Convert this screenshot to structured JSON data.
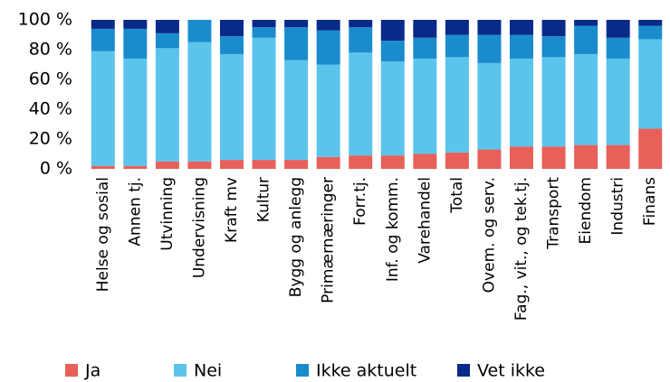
{
  "chart_data": {
    "type": "stacked_bar",
    "categories": [
      "Helse og sosial",
      "Annen tj.",
      "Utvinning",
      "Undervisning",
      "Kraft mv",
      "Kultur",
      "Bygg og anlegg",
      "Primærnæringer",
      "Forr.tj.",
      "Inf. og komm.",
      "Varehandel",
      "Total",
      "Ovem. og serv.",
      "Fag., vit., og tek.tj.",
      "Transport",
      "Eiendom",
      "Industri",
      "Finans"
    ],
    "series": [
      {
        "name": "Ja",
        "color": "#e8605a",
        "values": [
          2,
          2,
          5,
          5,
          6,
          6,
          6,
          8,
          9,
          9,
          10,
          11,
          13,
          15,
          15,
          16,
          16,
          27
        ]
      },
      {
        "name": "Nei",
        "color": "#5bc4ec",
        "values": [
          77,
          72,
          76,
          80,
          71,
          82,
          67,
          62,
          69,
          63,
          64,
          64,
          58,
          59,
          60,
          61,
          58,
          60
        ]
      },
      {
        "name": "Ikke aktuelt",
        "color": "#1a8ccc",
        "values": [
          15,
          20,
          10,
          15,
          12,
          7,
          22,
          23,
          17,
          14,
          14,
          15,
          19,
          16,
          14,
          19,
          14,
          9
        ]
      },
      {
        "name": "Vet ikke",
        "color": "#0a2a8a",
        "values": [
          6,
          6,
          9,
          0,
          11,
          5,
          5,
          7,
          5,
          14,
          12,
          10,
          10,
          10,
          11,
          4,
          12,
          4
        ]
      }
    ],
    "ylim": [
      0,
      100
    ],
    "yticks": [
      {
        "value": 0,
        "label": "0 %"
      },
      {
        "value": 20,
        "label": "20 %"
      },
      {
        "value": 40,
        "label": "40 %"
      },
      {
        "value": 60,
        "label": "60 %"
      },
      {
        "value": 80,
        "label": "80 %"
      },
      {
        "value": 100,
        "label": "100 %"
      }
    ],
    "legend": "bottom"
  }
}
